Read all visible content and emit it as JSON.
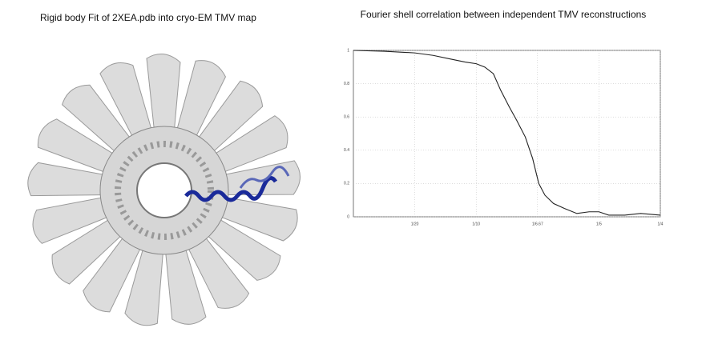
{
  "left_panel": {
    "title": "Rigid body Fit of 2XEA.pdb into cryo-EM TMV map"
  },
  "chart_data": {
    "type": "line",
    "title": "Fourier shell correlation between independent TMV reconstructions",
    "x": [
      0,
      0.025,
      0.05,
      0.065,
      0.078,
      0.091,
      0.1,
      0.107,
      0.114,
      0.12,
      0.127,
      0.133,
      0.14,
      0.146,
      0.151,
      0.156,
      0.163,
      0.172,
      0.182,
      0.192,
      0.2,
      0.208,
      0.221,
      0.234,
      0.25
    ],
    "series": [
      {
        "color": "#222222",
        "values": [
          1,
          0.995,
          0.985,
          0.97,
          0.95,
          0.93,
          0.92,
          0.9,
          0.86,
          0.76,
          0.66,
          0.58,
          0.48,
          0.35,
          0.2,
          0.13,
          0.08,
          0.05,
          0.02,
          0.03,
          0.03,
          0.01,
          0.01,
          0.02,
          0.01
        ]
      }
    ],
    "xlim": [
      0,
      0.25
    ],
    "xticks": [
      {
        "value": 0.05,
        "label": "1/20"
      },
      {
        "value": 0.1,
        "label": "1/10"
      },
      {
        "value": 0.15,
        "label": "1/6.67"
      },
      {
        "value": 0.2,
        "label": "1/5"
      },
      {
        "value": 0.25,
        "label": "1/4"
      }
    ],
    "ylim": [
      0,
      1
    ],
    "yticks": [
      0,
      0.2,
      0.4,
      0.6,
      0.8,
      1
    ],
    "grid": true
  }
}
